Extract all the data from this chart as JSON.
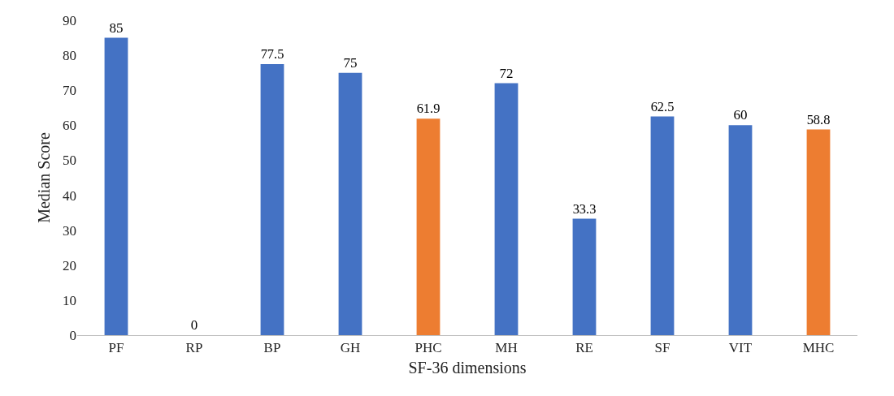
{
  "chart_data": {
    "type": "bar",
    "xlabel": "SF-36 dimensions",
    "ylabel": "Median Score",
    "categories": [
      "PF",
      "RP",
      "BP",
      "GH",
      "PHC",
      "MH",
      "RE",
      "SF",
      "VIT",
      "MHC"
    ],
    "values": [
      85,
      0,
      77.5,
      75,
      61.9,
      72,
      33.3,
      62.5,
      60,
      58.8
    ],
    "colors": [
      "#4472c4",
      "#4472c4",
      "#4472c4",
      "#4472c4",
      "#ed7d31",
      "#4472c4",
      "#4472c4",
      "#4472c4",
      "#4472c4",
      "#ed7d31"
    ],
    "ylim": [
      0,
      90
    ],
    "yticks": [
      0,
      10,
      20,
      30,
      40,
      50,
      60,
      70,
      80,
      90
    ],
    "data_labels": true,
    "grid": false
  }
}
